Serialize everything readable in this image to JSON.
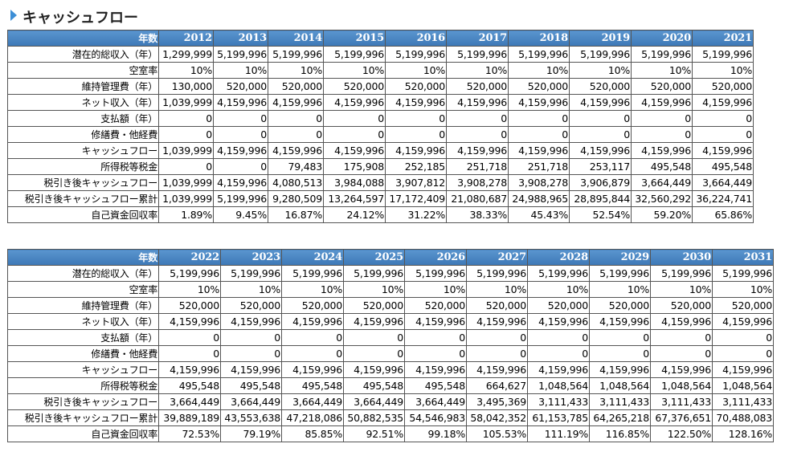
{
  "title": "キャッシュフロー",
  "tables": [
    {
      "header": [
        "年数",
        "2012",
        "2013",
        "2014",
        "2015",
        "2016",
        "2017",
        "2018",
        "2019",
        "2020",
        "2021"
      ],
      "rows": [
        [
          "潜在的総収入（年）",
          "1,299,999",
          "5,199,996",
          "5,199,996",
          "5,199,996",
          "5,199,996",
          "5,199,996",
          "5,199,996",
          "5,199,996",
          "5,199,996",
          "5,199,996"
        ],
        [
          "空室率",
          "10%",
          "10%",
          "10%",
          "10%",
          "10%",
          "10%",
          "10%",
          "10%",
          "10%",
          "10%"
        ],
        [
          "維持管理費（年）",
          "130,000",
          "520,000",
          "520,000",
          "520,000",
          "520,000",
          "520,000",
          "520,000",
          "520,000",
          "520,000",
          "520,000"
        ],
        [
          "ネット収入（年）",
          "1,039,999",
          "4,159,996",
          "4,159,996",
          "4,159,996",
          "4,159,996",
          "4,159,996",
          "4,159,996",
          "4,159,996",
          "4,159,996",
          "4,159,996"
        ],
        [
          "支払額（年）",
          "0",
          "0",
          "0",
          "0",
          "0",
          "0",
          "0",
          "0",
          "0",
          "0"
        ],
        [
          "修繕費・他経費",
          "0",
          "0",
          "0",
          "0",
          "0",
          "0",
          "0",
          "0",
          "0",
          "0"
        ],
        [
          "キャッシュフロー",
          "1,039,999",
          "4,159,996",
          "4,159,996",
          "4,159,996",
          "4,159,996",
          "4,159,996",
          "4,159,996",
          "4,159,996",
          "4,159,996",
          "4,159,996"
        ],
        [
          "所得税等税金",
          "0",
          "0",
          "79,483",
          "175,908",
          "252,185",
          "251,718",
          "251,718",
          "253,117",
          "495,548",
          "495,548"
        ],
        [
          "税引き後キャッシュフロー",
          "1,039,999",
          "4,159,996",
          "4,080,513",
          "3,984,088",
          "3,907,812",
          "3,908,278",
          "3,908,278",
          "3,906,879",
          "3,664,449",
          "3,664,449"
        ],
        [
          "税引き後キャッシュフロー累計",
          "1,039,999",
          "5,199,996",
          "9,280,509",
          "13,264,597",
          "17,172,409",
          "21,080,687",
          "24,988,965",
          "28,895,844",
          "32,560,292",
          "36,224,741"
        ],
        [
          "自己資金回収率",
          "1.89%",
          "9.45%",
          "16.87%",
          "24.12%",
          "31.22%",
          "38.33%",
          "45.43%",
          "52.54%",
          "59.20%",
          "65.86%"
        ]
      ]
    },
    {
      "header": [
        "年数",
        "2022",
        "2023",
        "2024",
        "2025",
        "2026",
        "2027",
        "2028",
        "2029",
        "2030",
        "2031"
      ],
      "rows": [
        [
          "潜在的総収入（年）",
          "5,199,996",
          "5,199,996",
          "5,199,996",
          "5,199,996",
          "5,199,996",
          "5,199,996",
          "5,199,996",
          "5,199,996",
          "5,199,996",
          "5,199,996"
        ],
        [
          "空室率",
          "10%",
          "10%",
          "10%",
          "10%",
          "10%",
          "10%",
          "10%",
          "10%",
          "10%",
          "10%"
        ],
        [
          "維持管理費（年）",
          "520,000",
          "520,000",
          "520,000",
          "520,000",
          "520,000",
          "520,000",
          "520,000",
          "520,000",
          "520,000",
          "520,000"
        ],
        [
          "ネット収入（年）",
          "4,159,996",
          "4,159,996",
          "4,159,996",
          "4,159,996",
          "4,159,996",
          "4,159,996",
          "4,159,996",
          "4,159,996",
          "4,159,996",
          "4,159,996"
        ],
        [
          "支払額（年）",
          "0",
          "0",
          "0",
          "0",
          "0",
          "0",
          "0",
          "0",
          "0",
          "0"
        ],
        [
          "修繕費・他経費",
          "0",
          "0",
          "0",
          "0",
          "0",
          "0",
          "0",
          "0",
          "0",
          "0"
        ],
        [
          "キャッシュフロー",
          "4,159,996",
          "4,159,996",
          "4,159,996",
          "4,159,996",
          "4,159,996",
          "4,159,996",
          "4,159,996",
          "4,159,996",
          "4,159,996",
          "4,159,996"
        ],
        [
          "所得税等税金",
          "495,548",
          "495,548",
          "495,548",
          "495,548",
          "495,548",
          "664,627",
          "1,048,564",
          "1,048,564",
          "1,048,564",
          "1,048,564"
        ],
        [
          "税引き後キャッシュフロー",
          "3,664,449",
          "3,664,449",
          "3,664,449",
          "3,664,449",
          "3,664,449",
          "3,495,369",
          "3,111,433",
          "3,111,433",
          "3,111,433",
          "3,111,433"
        ],
        [
          "税引き後キャッシュフロー累計",
          "39,889,189",
          "43,553,638",
          "47,218,086",
          "50,882,535",
          "54,546,983",
          "58,042,352",
          "61,153,785",
          "64,265,218",
          "67,376,651",
          "70,488,083"
        ],
        [
          "自己資金回収率",
          "72.53%",
          "79.19%",
          "85.85%",
          "92.51%",
          "99.18%",
          "105.53%",
          "111.19%",
          "116.85%",
          "122.50%",
          "128.16%"
        ]
      ]
    }
  ]
}
